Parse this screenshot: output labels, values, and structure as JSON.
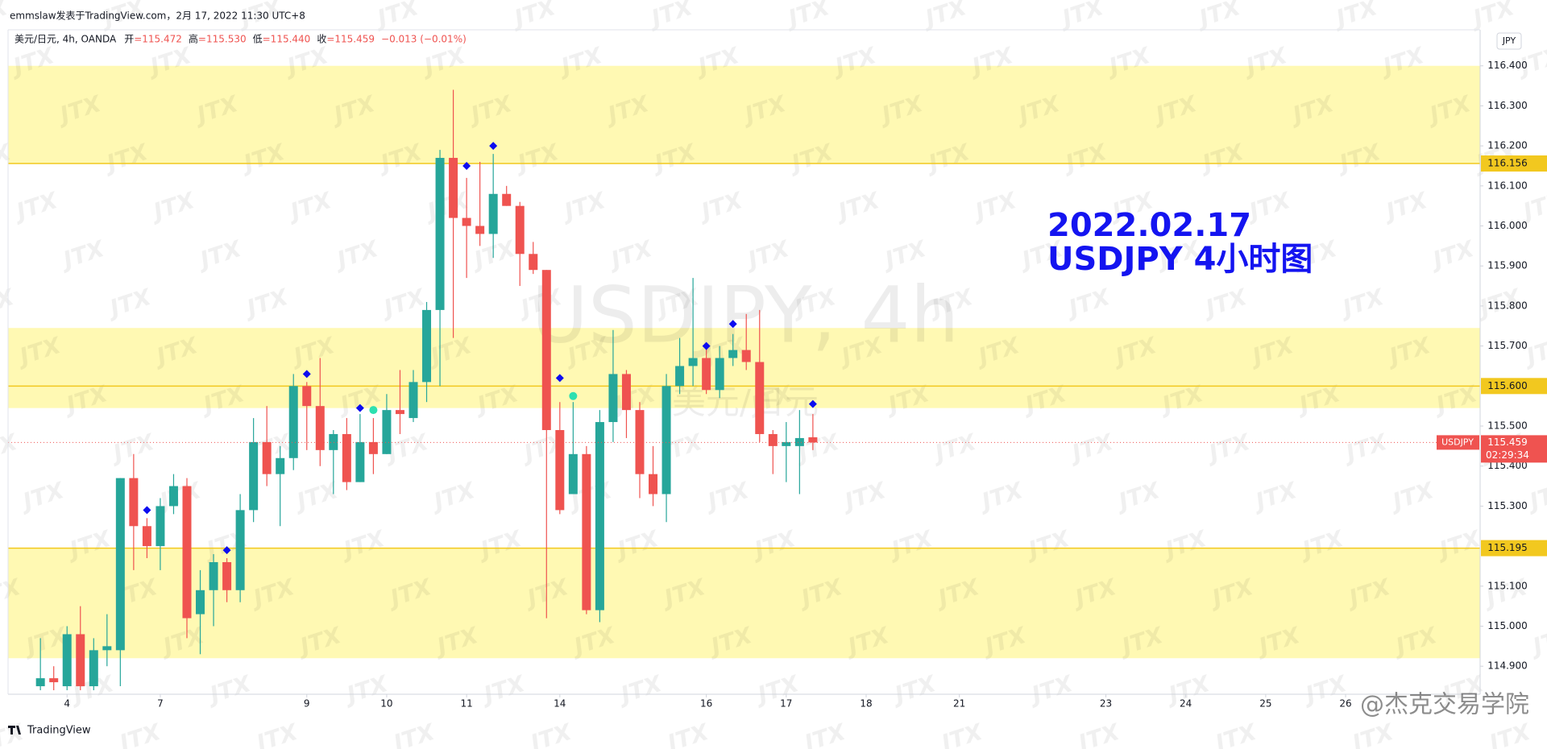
{
  "chart_data": {
    "type": "candlestick",
    "header": "emmslaw发表于TradingView.com，2月 17, 2022 11:30 UTC+8",
    "symbol": "美元/日元, 4h, OANDA",
    "legend_keys": [
      "开",
      "高",
      "低",
      "收"
    ],
    "legend_values": [
      "=115.472",
      "=115.530",
      "=115.440",
      "=115.459"
    ],
    "change": "−0.013 (−0.01%)",
    "annotation": [
      "2022.02.17",
      "USDJPY 4小时图"
    ],
    "watermark": "USDJPY, 4h",
    "watermark_sub": "美元/日元",
    "tile_watermark": "JTX",
    "corner_watermark": "@杰克交易学院",
    "brand": "TradingView",
    "currency_button": "JPY",
    "up_color": "#26a69a",
    "down_color": "#ef5350",
    "zone_color": "#fff9b3",
    "level_color": "#f2c81f",
    "grid": false,
    "open": [
      114.85,
      114.87,
      114.85,
      114.98,
      114.85,
      114.94,
      114.94,
      115.37,
      115.25,
      115.2,
      115.3,
      115.35,
      115.03,
      115.09,
      115.16,
      115.09,
      115.29,
      115.46,
      115.38,
      115.42,
      115.6,
      115.55,
      115.44,
      115.48,
      115.36,
      115.46,
      115.43,
      115.54,
      115.52,
      115.61,
      115.79,
      116.17,
      116.02,
      116.0,
      115.98,
      116.08,
      116.05,
      115.93,
      115.89,
      115.49,
      115.33,
      115.43,
      115.04,
      115.51,
      115.63,
      115.54,
      115.38,
      115.33,
      115.6,
      115.65,
      115.67,
      115.59,
      115.67,
      115.69,
      115.66,
      115.48,
      115.45,
      115.45,
      115.472
    ],
    "high": [
      114.97,
      114.9,
      115.0,
      115.05,
      114.97,
      115.03,
      115.37,
      115.43,
      115.27,
      115.32,
      115.38,
      115.37,
      115.14,
      115.18,
      115.17,
      115.33,
      115.52,
      115.55,
      115.45,
      115.63,
      115.61,
      115.67,
      115.49,
      115.52,
      115.53,
      115.52,
      115.58,
      115.64,
      115.64,
      115.81,
      116.19,
      116.34,
      116.12,
      116.16,
      116.18,
      116.1,
      116.06,
      115.96,
      115.89,
      115.56,
      115.56,
      115.45,
      115.54,
      115.74,
      115.64,
      115.56,
      115.45,
      115.63,
      115.72,
      115.87,
      115.7,
      115.7,
      115.73,
      115.78,
      115.79,
      115.49,
      115.51,
      115.54,
      115.53
    ],
    "low": [
      114.84,
      114.84,
      114.84,
      114.84,
      114.84,
      114.9,
      114.85,
      115.14,
      115.17,
      115.14,
      115.28,
      114.97,
      114.93,
      115.0,
      115.06,
      115.06,
      115.26,
      115.35,
      115.25,
      115.39,
      115.44,
      115.4,
      115.33,
      115.34,
      115.36,
      115.38,
      115.43,
      115.48,
      115.51,
      115.56,
      115.6,
      115.72,
      115.87,
      115.95,
      115.92,
      116.05,
      115.85,
      115.88,
      115.02,
      115.28,
      115.33,
      115.03,
      115.01,
      115.46,
      115.47,
      115.32,
      115.3,
      115.26,
      115.58,
      115.6,
      115.58,
      115.57,
      115.65,
      115.64,
      115.46,
      115.38,
      115.36,
      115.33,
      115.44
    ],
    "close": [
      114.87,
      114.86,
      114.98,
      114.85,
      114.94,
      114.95,
      115.37,
      115.25,
      115.2,
      115.3,
      115.35,
      115.02,
      115.09,
      115.16,
      115.09,
      115.29,
      115.46,
      115.38,
      115.42,
      115.6,
      115.55,
      115.44,
      115.48,
      115.36,
      115.46,
      115.43,
      115.54,
      115.53,
      115.61,
      115.79,
      116.17,
      116.02,
      116.0,
      115.98,
      116.08,
      116.05,
      115.93,
      115.89,
      115.49,
      115.29,
      115.43,
      115.04,
      115.51,
      115.63,
      115.54,
      115.38,
      115.33,
      115.6,
      115.65,
      115.67,
      115.59,
      115.67,
      115.69,
      115.66,
      115.48,
      115.45,
      115.46,
      115.47,
      115.459
    ],
    "diamonds": {
      "color": "#0d0df0",
      "x": [
        8,
        14,
        20,
        24,
        32,
        34,
        39,
        50,
        52,
        58
      ],
      "values": [
        115.29,
        115.19,
        115.63,
        115.545,
        116.15,
        116.2,
        115.62,
        115.7,
        115.755,
        115.555
      ]
    },
    "dots": {
      "color": "#2de0b0",
      "x": [
        25,
        40
      ],
      "values": [
        115.54,
        115.575
      ]
    },
    "zones": [
      [
        116.156,
        116.4
      ],
      [
        115.545,
        115.745
      ],
      [
        114.92,
        115.195
      ]
    ],
    "levels": [
      {
        "value": 116.156,
        "label": "116.156"
      },
      {
        "value": 115.6,
        "label": "115.600"
      },
      {
        "value": 115.195,
        "label": "115.195"
      }
    ],
    "last_price": {
      "value": 115.459,
      "label": "115.459",
      "name": "USDJPY",
      "countdown": "02:29:34"
    },
    "xlim": [
      -2.43,
      108.1
    ],
    "ylim": [
      114.83,
      116.49
    ],
    "xticks": [
      {
        "value": 2,
        "label": "4"
      },
      {
        "value": 9,
        "label": "7"
      },
      {
        "value": 20,
        "label": "9"
      },
      {
        "value": 26,
        "label": "10"
      },
      {
        "value": 32,
        "label": "11"
      },
      {
        "value": 39,
        "label": "14"
      },
      {
        "value": 50,
        "label": "16"
      },
      {
        "value": 56,
        "label": "17"
      },
      {
        "value": 62,
        "label": "18"
      },
      {
        "value": 69,
        "label": "21"
      },
      {
        "value": 80,
        "label": "23"
      },
      {
        "value": 86,
        "label": "24"
      },
      {
        "value": 92,
        "label": "25"
      },
      {
        "value": 98,
        "label": "26"
      }
    ],
    "yticks": [
      {
        "value": 116.4,
        "label": "116.400"
      },
      {
        "value": 116.3,
        "label": "116.300"
      },
      {
        "value": 116.2,
        "label": "116.200"
      },
      {
        "value": 116.1,
        "label": "116.100"
      },
      {
        "value": 116.0,
        "label": "116.000"
      },
      {
        "value": 115.9,
        "label": "115.900"
      },
      {
        "value": 115.8,
        "label": "115.800"
      },
      {
        "value": 115.7,
        "label": "115.700"
      },
      {
        "value": 115.5,
        "label": "115.500"
      },
      {
        "value": 115.4,
        "label": "115.400"
      },
      {
        "value": 115.3,
        "label": "115.300"
      },
      {
        "value": 115.1,
        "label": "115.100"
      },
      {
        "value": 115.0,
        "label": "115.000"
      },
      {
        "value": 114.9,
        "label": "114.900"
      }
    ]
  }
}
